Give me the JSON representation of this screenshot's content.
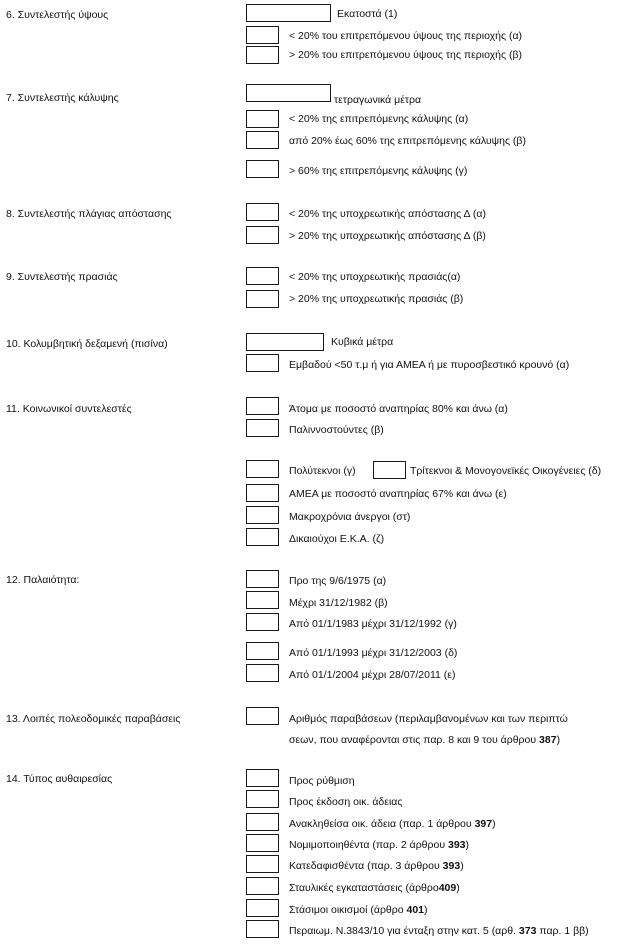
{
  "s6": {
    "label": "6.   Συντελεστής ύψους",
    "unit": "Εκατοστά (1)",
    "a": "< 20% του επιτρεπόμενου ύψους της περιοχής (α)",
    "b": "> 20% του επιτρεπόμενου ύψους της περιοχής (β)"
  },
  "s7": {
    "label": "7.   Συντελεστής κάλυψης",
    "unit": "τετραγωνικά μέτρα",
    "a": "< 20% της επιτρεπόμενης κάλυψης (α)",
    "b": "από 20% έως 60% της επιτρεπόμενης κάλυψης (β)",
    "c": "> 60% της επιτρεπόμενης κάλυψης (γ)"
  },
  "s8": {
    "label": "8.   Συντελεστής πλάγιας απόστασης",
    "a": "< 20% της υποχρεωτικής απόστασης Δ (α)",
    "b": "> 20% της υποχρεωτικής απόστασης Δ (β)"
  },
  "s9": {
    "label": "9.   Συντελεστής πρασιάς",
    "a": "< 20% της υποχρεωτικής πρασιάς(α)",
    "b": "> 20% της υποχρεωτικής πρασιάς (β)"
  },
  "s10": {
    "label": "10. Κολυμβητική δεξαμενή (πισίνα)",
    "unit": "Κυβικά μέτρα",
    "a": "Εμβαδού <50 τ.μ ή για ΑΜΕΑ ή με πυροσβεστικό κρουνό (α)"
  },
  "s11": {
    "label": "11. Κοινωνικοί συντελεστές",
    "a": "Άτομα με ποσοστό αναπηρίας 80% και άνω (α)",
    "b": "Παλιννοστούντες (β)",
    "c": "Πολύτεκνοι (γ)",
    "d": "Τρίτεκνοι & Μονογονεϊκές Οικογένειες (δ)",
    "e": "ΑΜΕΑ με ποσοστό αναπηρίας 67% και άνω (ε)",
    "st": "Μακροχρόνια άνεργοι  (στ)",
    "z": "Δικαιούχοι Ε.Κ.Α.  (ζ)"
  },
  "s12": {
    "label": "12. Παλαιότητα:",
    "a": "Προ της 9/6/1975  (α)",
    "b": "Μέχρι 31/12/1982 (β)",
    "c": "Από 01/1/1983 μέχρι 31/12/1992 (γ)",
    "d": "Από 01/1/1993 μέχρι 31/12/2003 (δ)",
    "e": "Από 01/1/2004 μέχρι 28/07/2011 (ε)"
  },
  "s13": {
    "label": "13.  Λοιπές πολεοδομικές παραβάσεις",
    "line1": "Αριθμός παραβάσεων (περιλαμβανομένων και των περιπτώ",
    "line2_pre": "σεων, που αναφέρονται στις παρ. 8 και 9 του άρθρου ",
    "line2_num": "387",
    "line2_post": ")"
  },
  "s14": {
    "label": "14.  Τύπος αυθαιρεσίας",
    "i1": "Προς ρύθμιση",
    "i2": "Προς έκδοση οικ. άδειας",
    "i3_pre": "Ανακληθείσα  οικ. άδεια (παρ. 1 άρθρου ",
    "i3_num": "397",
    "i3_post": ")",
    "i4_pre": "Νομιμοποιηθέντα (παρ. 2 άρθρου ",
    "i4_num": "393",
    "i4_post": ")",
    "i5_pre": "Κατεδαφισθέντα  (παρ. 3 άρθρου ",
    "i5_num": "393",
    "i5_post": ")",
    "i6_pre": "Σταυλικές εγκαταστάσεις  (άρθρο",
    "i6_num": "409",
    "i6_post": ")",
    "i7_pre": "Στάσιμοι οικισμοί  (άρθρο ",
    "i7_num": "401",
    "i7_post": ")",
    "i8_pre": "Περαιωμ. Ν.3843/10 για ένταξη στην κατ. 5 (αρθ. ",
    "i8_num": "373",
    "i8_post": " παρ. 1 ββ)"
  }
}
